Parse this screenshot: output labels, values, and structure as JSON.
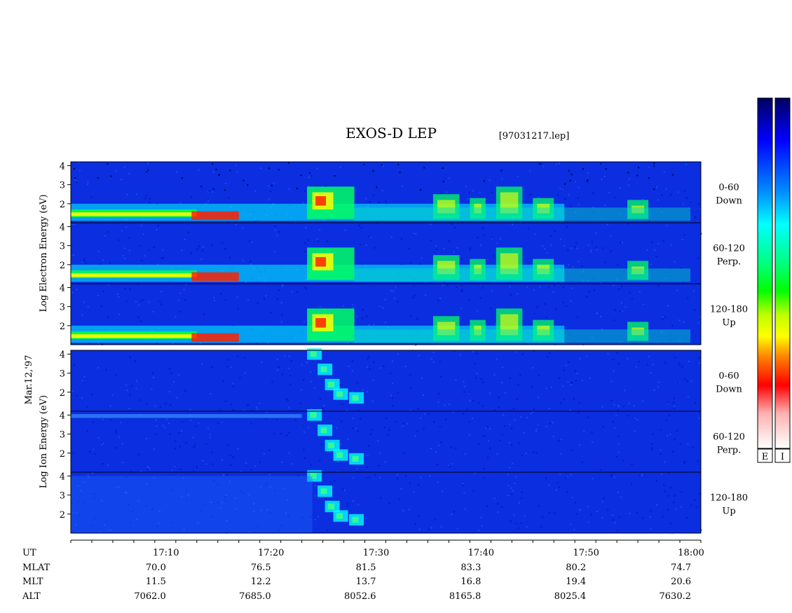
{
  "title": "EXOS-D LEP",
  "file_label": "[97031217.lep]",
  "date_label": "Mar.12,'97",
  "chart_data": {
    "type": "heatmap",
    "title": "EXOS-D LEP",
    "x_unit": "UT",
    "x_range": [
      "17:01",
      "18:01"
    ],
    "x_ticks": [
      "17:10",
      "17:20",
      "17:30",
      "17:40",
      "17:50",
      "18:00"
    ],
    "y_range": [
      1,
      4.2
    ],
    "y_ticks": [
      "2",
      "3",
      "4"
    ],
    "groups": [
      {
        "species": "Electron",
        "ylabel_lines": [
          "Log",
          "Electron",
          "Energy",
          "(eV)"
        ],
        "panels": [
          {
            "pitch": "0-60",
            "direction": "Down"
          },
          {
            "pitch": "60-120",
            "direction": "Perp."
          },
          {
            "pitch": "120-180",
            "direction": "Up"
          }
        ]
      },
      {
        "species": "Ion",
        "ylabel_lines": [
          "Log",
          "Ion",
          "Energy",
          "(eV)"
        ],
        "panels": [
          {
            "pitch": "0-60",
            "direction": "Down"
          },
          {
            "pitch": "60-120",
            "direction": "Perp."
          },
          {
            "pitch": "120-180",
            "direction": "Up"
          }
        ]
      }
    ],
    "colorbar": {
      "labels": [
        "E",
        "I"
      ],
      "colors": [
        "#ffffff",
        "#ffbfbf",
        "#ff0000",
        "#ff8000",
        "#ffff00",
        "#00ff00",
        "#00ffff",
        "#0080ff",
        "#0000ff",
        "#000080"
      ]
    }
  },
  "ephemeris": {
    "rows": [
      {
        "label": "UT",
        "values": [
          "17:10",
          "17:20",
          "17:30",
          "17:40",
          "17:50",
          "18:00"
        ]
      },
      {
        "label": "MLAT",
        "values": [
          "70.0",
          "76.5",
          "81.5",
          "83.3",
          "80.2",
          "74.7"
        ]
      },
      {
        "label": "MLT",
        "values": [
          "11.5",
          "12.2",
          "13.7",
          "16.8",
          "19.4",
          "20.6"
        ]
      },
      {
        "label": "ALT",
        "values": [
          "7062.0",
          "7685.0",
          "8052.6",
          "8165.8",
          "8025.4",
          "7630.2"
        ]
      }
    ]
  }
}
